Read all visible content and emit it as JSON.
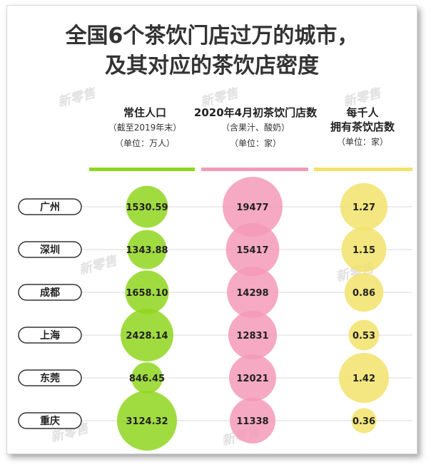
{
  "title_line1": "全国6个茶饮门店过万的城市，",
  "title_line2": "及其对应的茶饮店密度",
  "watermark": "新零售",
  "columns": [
    {
      "title": "常住人口",
      "sub1": "（截至2019年末）",
      "sub2": "（单位：万人）"
    },
    {
      "title": "2020年4月初茶饮门店数",
      "sub1": "（含果汁、酸奶）",
      "sub2": "（单位：家）"
    },
    {
      "title": "每千人",
      "sub1": "拥有茶饮店数",
      "sub2": "（单位：家）"
    }
  ],
  "colors": {
    "green": "#8fd61e",
    "pink": "#f49ab8",
    "yellow": "#f2e26a"
  },
  "chart_data": {
    "type": "bubble-table",
    "categories": [
      "广州",
      "深圳",
      "成都",
      "上海",
      "东莞",
      "重庆"
    ],
    "series": [
      {
        "name": "常住人口",
        "values": [
          1530.59,
          1343.88,
          1658.1,
          2428.14,
          846.45,
          3124.32
        ],
        "labels": [
          "1530.59",
          "1343.88",
          "1658.10",
          "2428.14",
          "846.45",
          "3124.32"
        ]
      },
      {
        "name": "2020年4月初茶饮门店数",
        "values": [
          19477,
          15417,
          14298,
          12831,
          12021,
          11338
        ],
        "labels": [
          "19477",
          "15417",
          "14298",
          "12831",
          "12021",
          "11338"
        ]
      },
      {
        "name": "每千人拥有茶饮店数",
        "values": [
          1.27,
          1.15,
          0.86,
          0.53,
          1.42,
          0.36
        ],
        "labels": [
          "1.27",
          "1.15",
          "0.86",
          "0.53",
          "1.42",
          "0.36"
        ]
      }
    ]
  }
}
